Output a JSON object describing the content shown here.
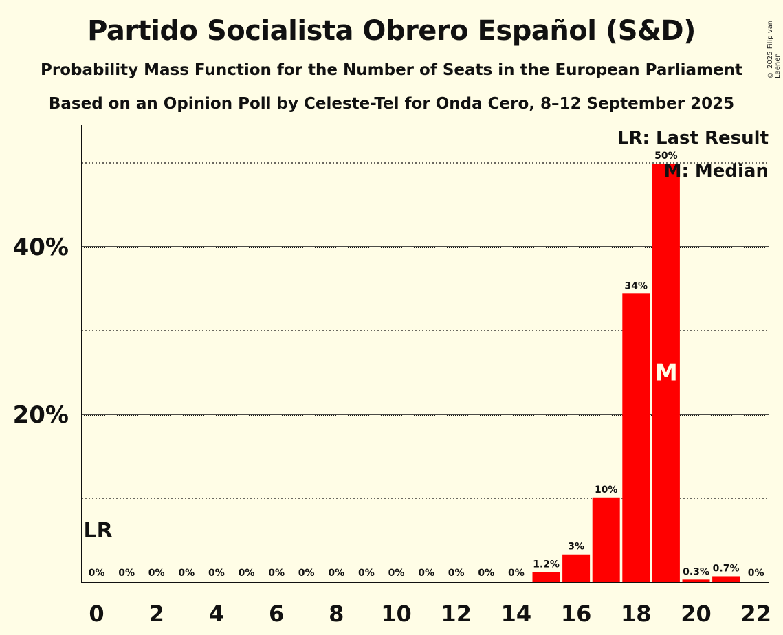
{
  "title": "Partido Socialista Obrero Español (S&D)",
  "subtitle": "Probability Mass Function for the Number of Seats in the European Parliament",
  "subtitle2": "Based on an Opinion Poll by Celeste-Tel for Onda Cero, 8–12 September 2025",
  "copyright": "© 2025 Filip van Laenen",
  "legend": {
    "last_result": "LR: Last Result",
    "median": "M: Median"
  },
  "colors": {
    "background": "#fffde6",
    "bar": "#ff0000",
    "text": "#111111"
  },
  "chart_data": {
    "type": "bar",
    "x": [
      0,
      1,
      2,
      3,
      4,
      5,
      6,
      7,
      8,
      9,
      10,
      11,
      12,
      13,
      14,
      15,
      16,
      17,
      18,
      19,
      20,
      21,
      22
    ],
    "values": [
      0,
      0,
      0,
      0,
      0,
      0,
      0,
      0,
      0,
      0,
      0,
      0,
      0,
      0,
      0,
      1.2,
      3.3,
      10.1,
      34.4,
      49.9,
      0.3,
      0.7,
      0
    ],
    "labels": [
      "0%",
      "0%",
      "0%",
      "0%",
      "0%",
      "0%",
      "0%",
      "0%",
      "0%",
      "0%",
      "0%",
      "0%",
      "0%",
      "0%",
      "0%",
      "1.2%",
      "3%",
      "10%",
      "34%",
      "50%",
      "0.3%",
      "0.7%",
      "0%"
    ],
    "x_tick_labels": [
      "0",
      "2",
      "4",
      "6",
      "8",
      "10",
      "12",
      "14",
      "16",
      "18",
      "20",
      "22"
    ],
    "y_tick_labels": [
      "20%",
      "40%"
    ],
    "ylim": [
      0,
      54
    ],
    "major_grid": [
      20,
      40
    ],
    "minor_grid": [
      10,
      30,
      50
    ],
    "last_result_seat": 0,
    "last_result_marker": "LR",
    "median_seat": 19,
    "median_marker": "M",
    "legend_position": "top-right"
  }
}
